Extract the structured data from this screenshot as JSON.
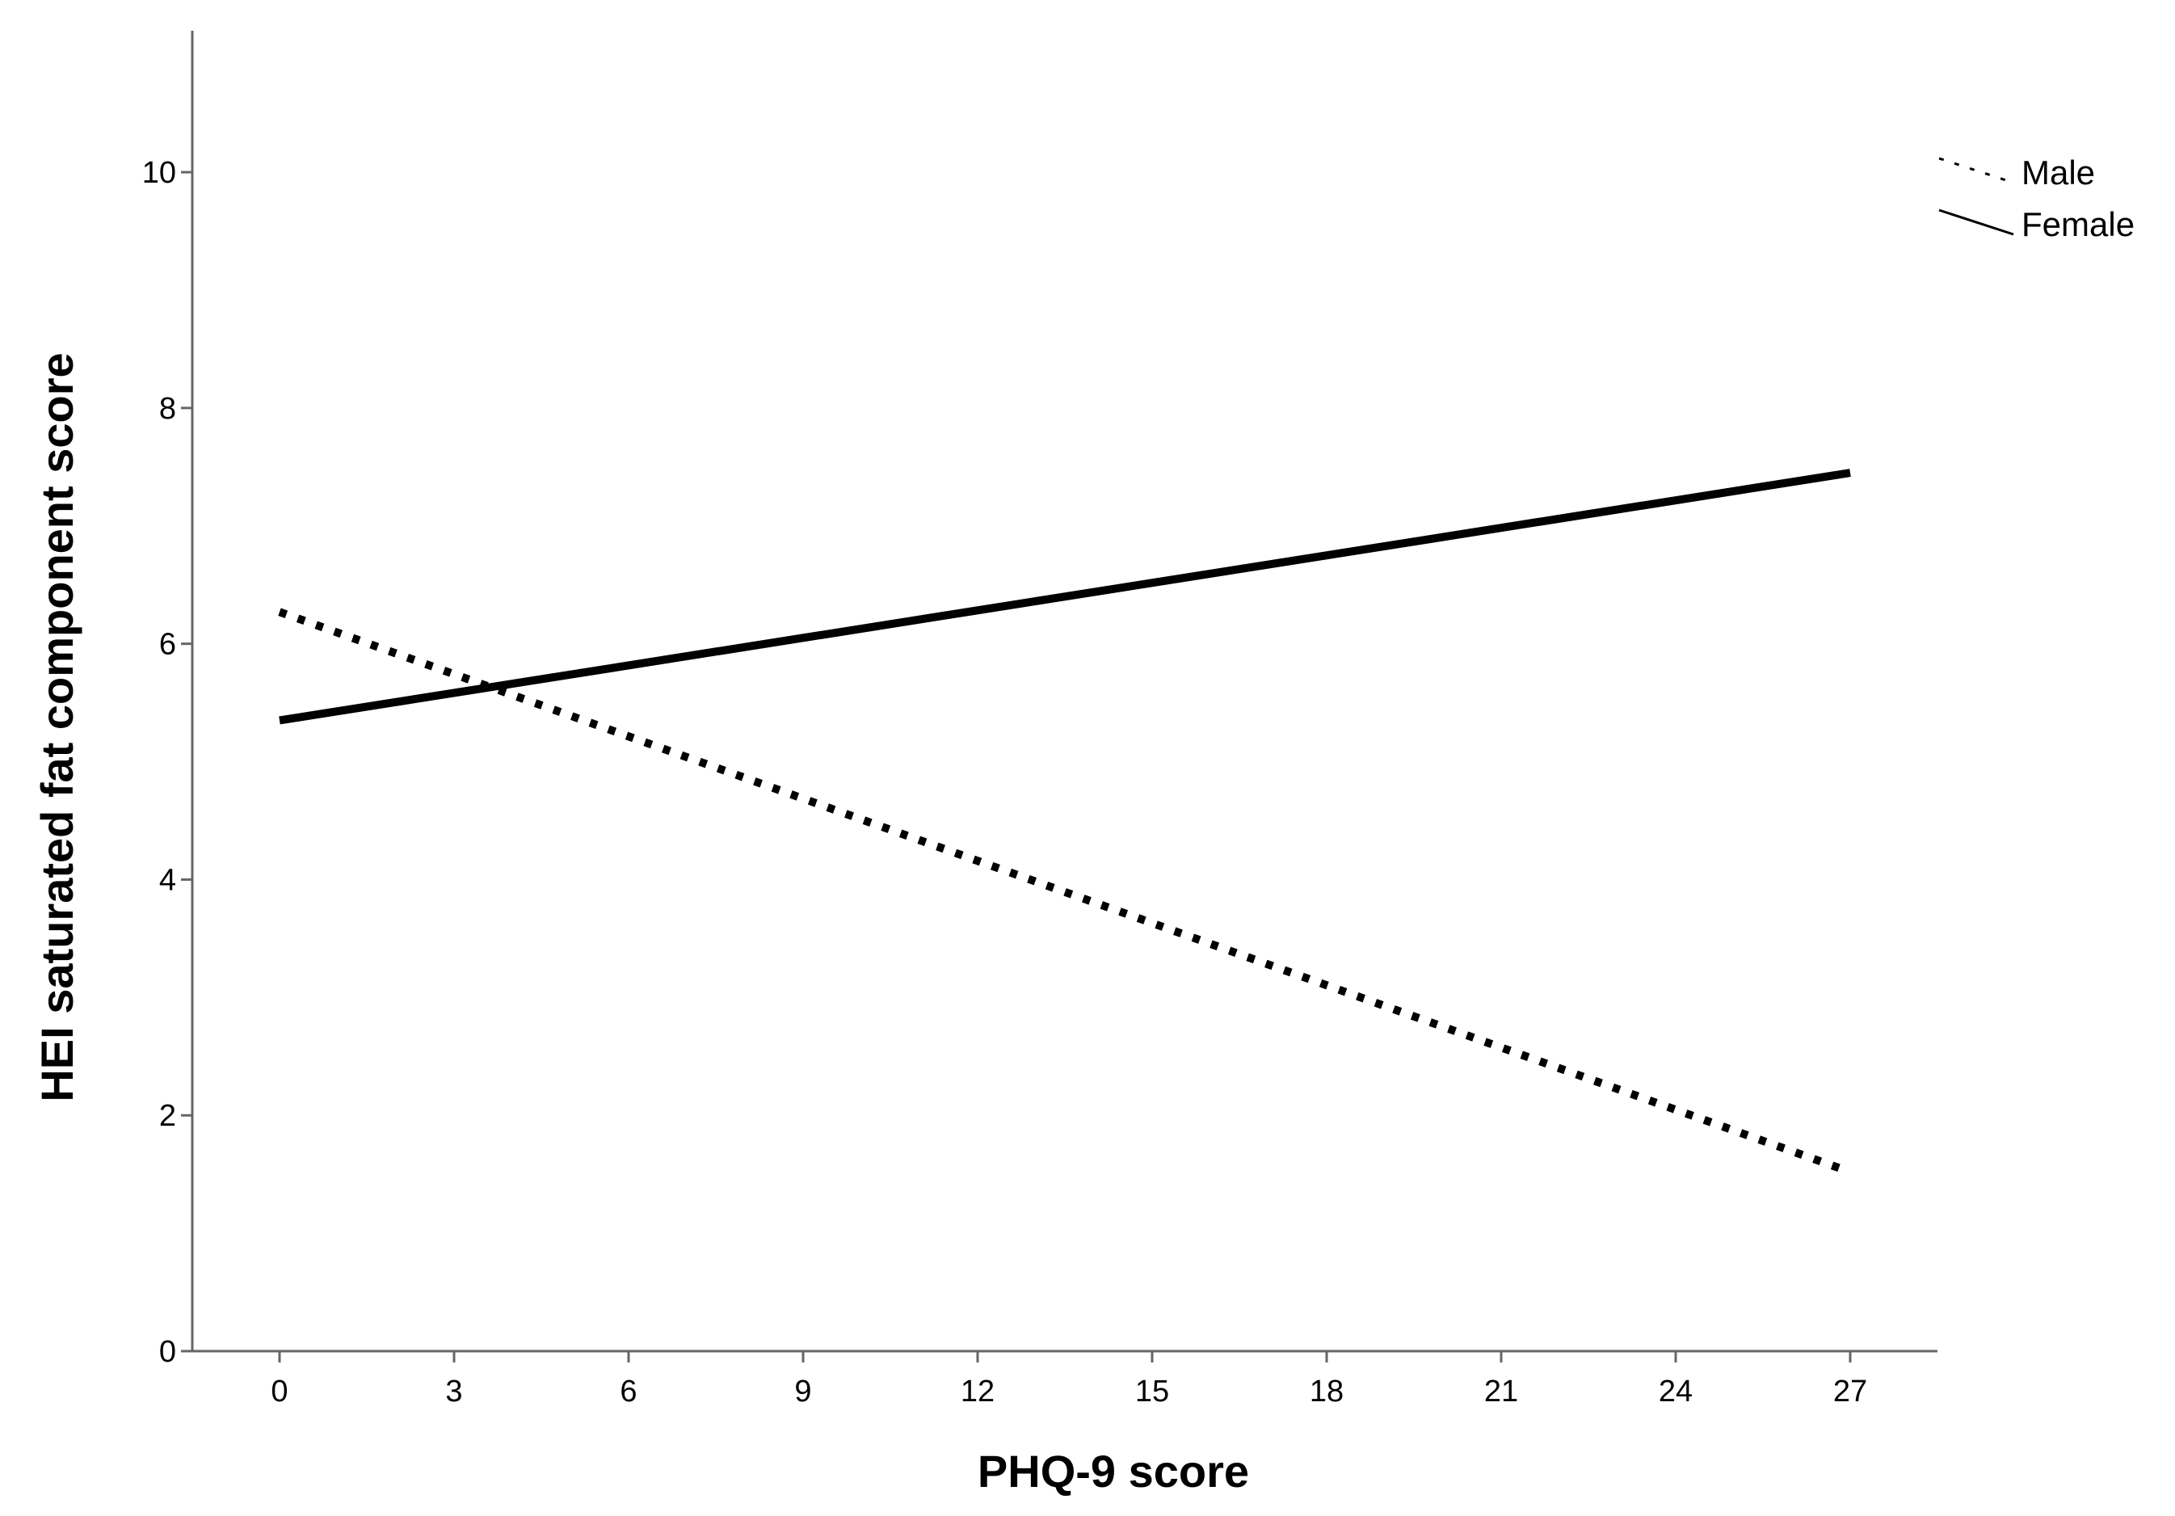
{
  "chart_data": {
    "type": "line",
    "title": "",
    "xlabel": "PHQ-9 score",
    "ylabel": "HEI saturated fat component score",
    "xlim": [
      -1.5,
      28.5
    ],
    "ylim": [
      0,
      11.2
    ],
    "xticks": [
      0,
      3,
      6,
      9,
      12,
      15,
      18,
      21,
      24,
      27
    ],
    "yticks": [
      0,
      2,
      4,
      6,
      8,
      10
    ],
    "grid": false,
    "legend_position": "top-right",
    "series": [
      {
        "name": "Male",
        "style": "dotted",
        "color": "#000000",
        "x": [
          0,
          27
        ],
        "y": [
          6.27,
          1.52
        ]
      },
      {
        "name": "Female",
        "style": "solid",
        "color": "#000000",
        "x": [
          0,
          27
        ],
        "y": [
          5.35,
          7.45
        ]
      }
    ]
  }
}
